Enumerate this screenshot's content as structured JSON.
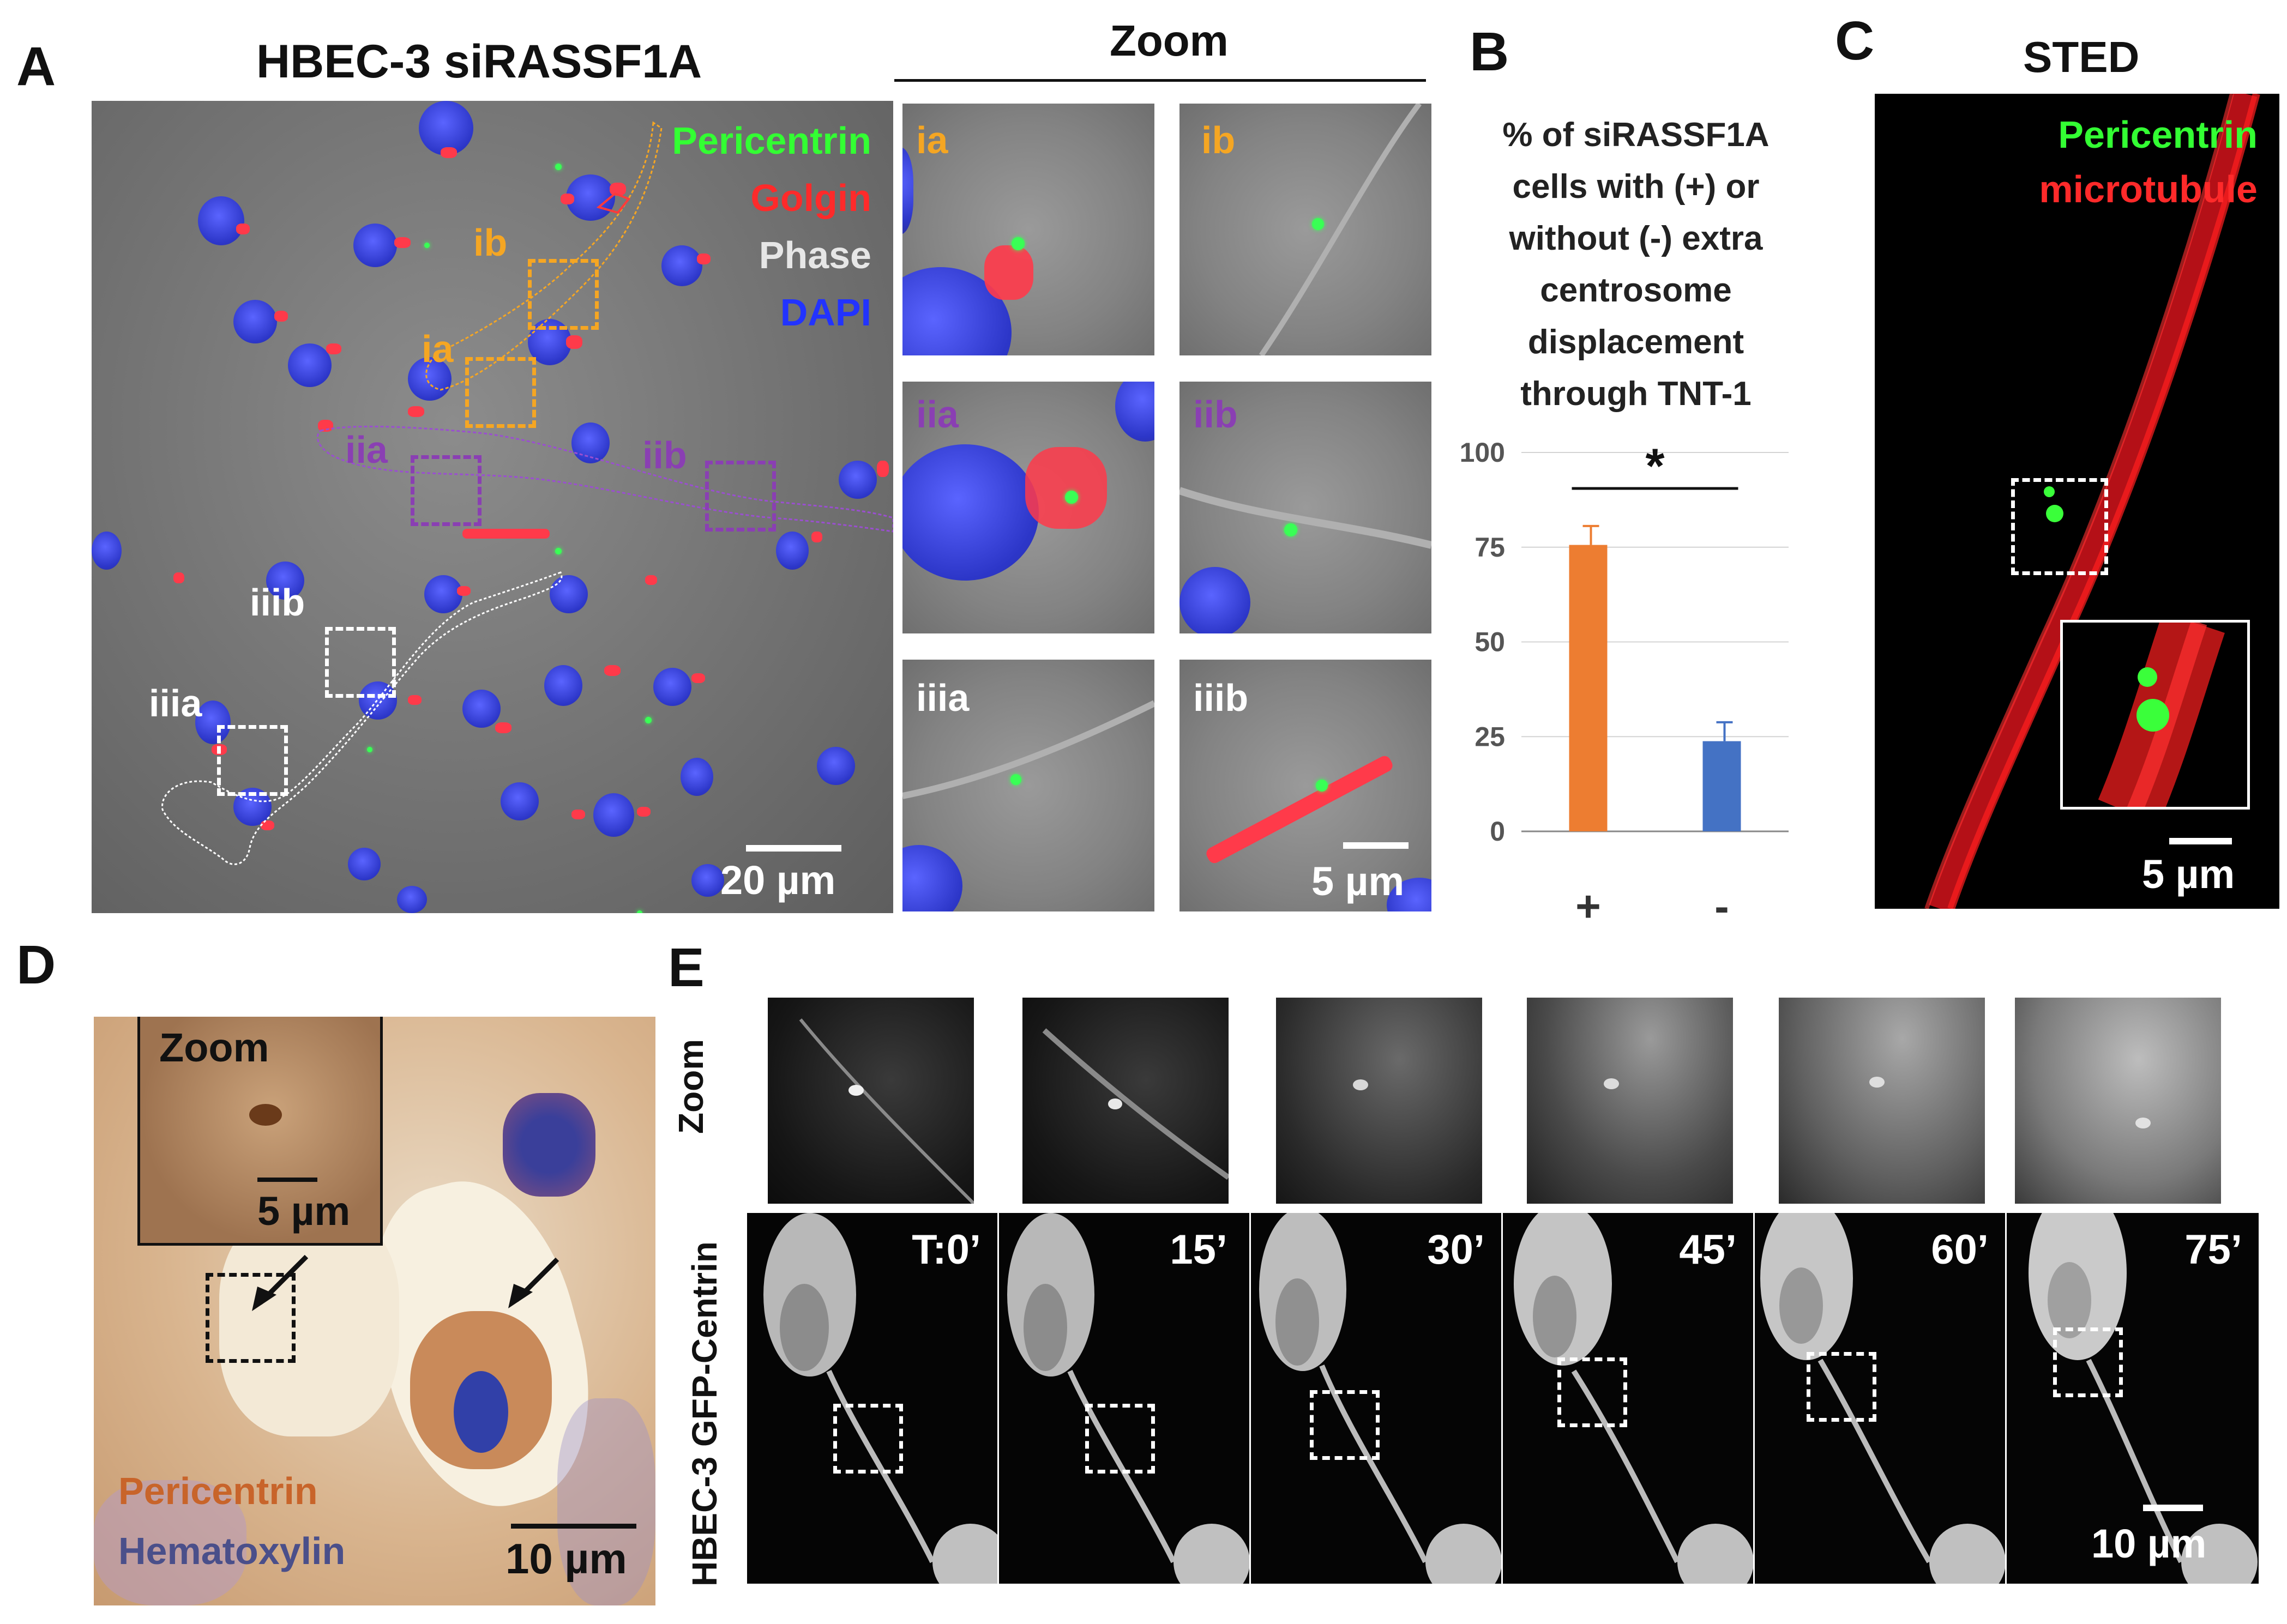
{
  "panels": {
    "A": {
      "letter": "A",
      "title": "HBEC-3 siRASSF1A",
      "zoom_header": "Zoom",
      "legend": [
        {
          "text": "Pericentrin",
          "color": "#33ff33"
        },
        {
          "text": "Golgin",
          "color": "#ff2a2a"
        },
        {
          "text": "Phase",
          "color": "#e6e6e6"
        },
        {
          "text": "DAPI",
          "color": "#2233ff"
        }
      ],
      "regions": [
        {
          "label": "ib",
          "color": "#f5a623"
        },
        {
          "label": "ia",
          "color": "#f5a623"
        },
        {
          "label": "iia",
          "color": "#8a3fb3"
        },
        {
          "label": "iib",
          "color": "#8a3fb3"
        },
        {
          "label": "iiib",
          "color": "#ffffff"
        },
        {
          "label": "iiia",
          "color": "#ffffff"
        }
      ],
      "zoom_tiles": [
        "ia",
        "ib",
        "iia",
        "iib",
        "iiia",
        "iiib"
      ],
      "scale_main": "20 µm",
      "scale_zoom": "5 µm"
    },
    "B": {
      "letter": "B",
      "caption_lines": [
        "% of siRASSF1A",
        "cells with (+) or",
        "without (-) extra",
        "centrosome",
        "displacement",
        "through TNT-1"
      ],
      "significance": "*"
    },
    "C": {
      "letter": "C",
      "title": "STED",
      "legend": [
        {
          "text": "Pericentrin",
          "color": "#33ff33"
        },
        {
          "text": "microtubule",
          "color": "#ff2a2a"
        }
      ],
      "scale": "5 µm"
    },
    "D": {
      "letter": "D",
      "zoom_label": "Zoom",
      "zoom_scale": "5 µm",
      "legend": [
        {
          "text": "Pericentrin",
          "color": "#c8642a"
        },
        {
          "text": "Hematoxylin",
          "color": "#4a4f8a"
        }
      ],
      "scale": "10 µm"
    },
    "E": {
      "letter": "E",
      "zoom_row_label": "Zoom",
      "frame_row_label": "HBEC-3 GFP-Centrin",
      "timepoints": [
        "T:0’",
        "15’",
        "30’",
        "45’",
        "60’",
        "75’"
      ],
      "scale": "10 µm"
    }
  },
  "chart_data": {
    "type": "bar",
    "categories": [
      "+",
      "-"
    ],
    "values": [
      75.6,
      23.8
    ],
    "errors": [
      5,
      5
    ],
    "colors": [
      "#ed7d31",
      "#4472c4"
    ],
    "ylim": [
      0,
      100
    ],
    "yticks": [
      0,
      25,
      50,
      75,
      100
    ],
    "grid": true,
    "title": "",
    "xlabel": "",
    "ylabel": ""
  }
}
